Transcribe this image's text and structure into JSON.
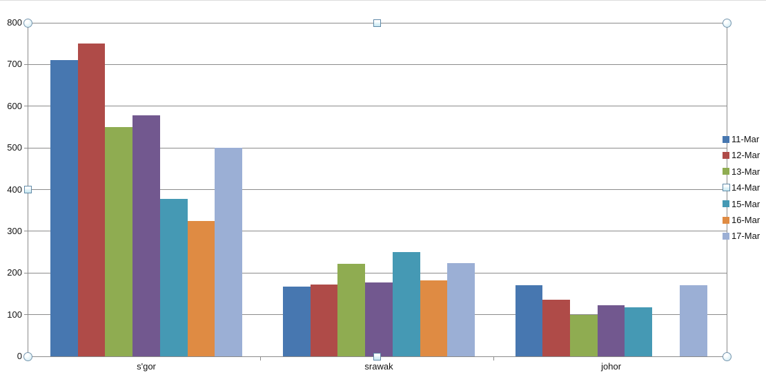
{
  "chart_data": {
    "type": "bar",
    "title": "",
    "categories": [
      "s'gor",
      "srawak",
      "johor"
    ],
    "series": [
      {
        "name": "11-Mar",
        "color": "#4777b0",
        "values": [
          710,
          168,
          170
        ]
      },
      {
        "name": "12-Mar",
        "color": "#af4b48",
        "values": [
          750,
          173,
          136
        ]
      },
      {
        "name": "13-Mar",
        "color": "#8fac51",
        "values": [
          550,
          222,
          100
        ]
      },
      {
        "name": "14-Mar",
        "color": "#72588f",
        "values": [
          578,
          178,
          122
        ]
      },
      {
        "name": "15-Mar",
        "color": "#4599b4",
        "values": [
          378,
          250,
          118
        ]
      },
      {
        "name": "16-Mar",
        "color": "#df8b43",
        "values": [
          324,
          182,
          0
        ]
      },
      {
        "name": "17-Mar",
        "color": "#9bafd5",
        "values": [
          500,
          224,
          170
        ]
      }
    ],
    "xlabel": "",
    "ylabel": "",
    "ylim": [
      0,
      800
    ],
    "ytick_step": 100,
    "y_tick_labels": [
      "0",
      "100",
      "200",
      "300",
      "400",
      "500",
      "600",
      "700",
      "800"
    ],
    "grid": true,
    "legend_position": "right"
  },
  "selection": {
    "state": "plot-area-selected",
    "handle_border_color": "#5f89a7",
    "handle_fill_color": "#d9eef5"
  },
  "colors": {
    "gridline": "#8a8a8a",
    "axis": "#8a8a8a",
    "background": "#ffffff",
    "top_edge": "#dcdcdc",
    "label_text": "#111111"
  }
}
